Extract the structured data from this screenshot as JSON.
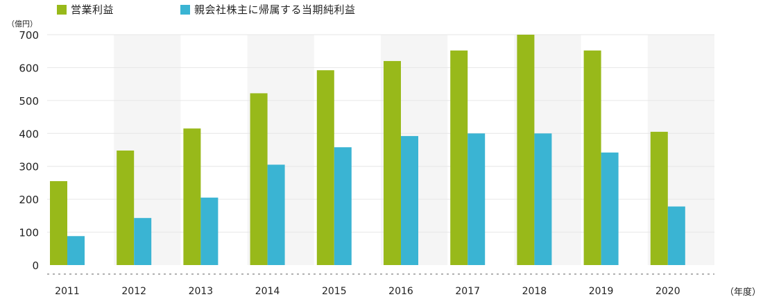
{
  "legend": {
    "items": [
      {
        "label": "営業利益",
        "color": "#98b91a"
      },
      {
        "label": "親会社株主に帰属する当期純利益",
        "color": "#3ab4d3"
      }
    ]
  },
  "colors": {
    "band": "#f5f5f5",
    "grid": "#e6e6e6",
    "baseline": "#b0b0b0"
  },
  "chart_data": {
    "type": "bar",
    "title": "",
    "ylabel": "（億円）",
    "xlabel": "（年度）",
    "categories": [
      "2011",
      "2012",
      "2013",
      "2014",
      "2015",
      "2016",
      "2017",
      "2018",
      "2019",
      "2020"
    ],
    "series": [
      {
        "name": "営業利益",
        "values": [
          255,
          348,
          415,
          522,
          592,
          620,
          652,
          700,
          652,
          405
        ]
      },
      {
        "name": "親会社株主に帰属する当期純利益",
        "values": [
          88,
          143,
          205,
          305,
          358,
          392,
          400,
          400,
          342,
          178
        ]
      }
    ],
    "ylim": [
      0,
      700
    ],
    "yticks": [
      0,
      100,
      200,
      300,
      400,
      500,
      600,
      700
    ],
    "grid": true,
    "legend_position": "top-left"
  }
}
